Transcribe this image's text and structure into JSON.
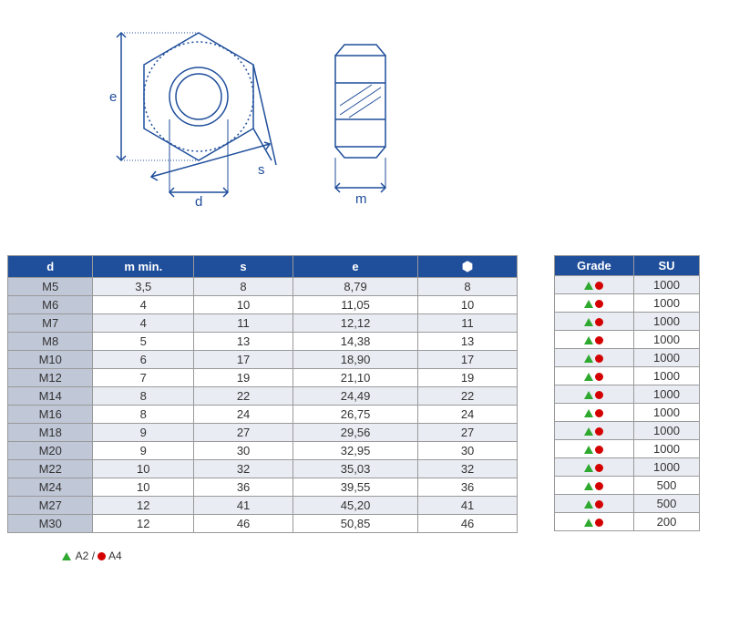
{
  "diagram": {
    "labels": {
      "e": "e",
      "s": "s",
      "d": "d",
      "m": "m"
    },
    "stroke": "#1f4e9b",
    "stroke_width": 1.5
  },
  "main_table": {
    "columns": [
      "d",
      "m min.",
      "s",
      "e",
      "⬢"
    ],
    "rows": [
      [
        "M5",
        "3,5",
        "8",
        "8,79",
        "8"
      ],
      [
        "M6",
        "4",
        "10",
        "11,05",
        "10"
      ],
      [
        "M7",
        "4",
        "11",
        "12,12",
        "11"
      ],
      [
        "M8",
        "5",
        "13",
        "14,38",
        "13"
      ],
      [
        "M10",
        "6",
        "17",
        "18,90",
        "17"
      ],
      [
        "M12",
        "7",
        "19",
        "21,10",
        "19"
      ],
      [
        "M14",
        "8",
        "22",
        "24,49",
        "22"
      ],
      [
        "M16",
        "8",
        "24",
        "26,75",
        "24"
      ],
      [
        "M18",
        "9",
        "27",
        "29,56",
        "27"
      ],
      [
        "M20",
        "9",
        "30",
        "32,95",
        "30"
      ],
      [
        "M22",
        "10",
        "32",
        "35,03",
        "32"
      ],
      [
        "M24",
        "10",
        "36",
        "39,55",
        "36"
      ],
      [
        "M27",
        "12",
        "41",
        "45,20",
        "41"
      ],
      [
        "M30",
        "12",
        "46",
        "50,85",
        "46"
      ]
    ],
    "col_widths": [
      "90px",
      "110px",
      "110px",
      "140px",
      "110px"
    ]
  },
  "side_table": {
    "columns": [
      "Grade",
      "SU"
    ],
    "su": [
      "1000",
      "1000",
      "1000",
      "1000",
      "1000",
      "1000",
      "1000",
      "1000",
      "1000",
      "1000",
      "1000",
      "500",
      "500",
      "200"
    ]
  },
  "legend": {
    "a2": "A2",
    "a4": "A4",
    "sep": " / "
  },
  "colors": {
    "header_bg": "#1f4e9b",
    "first_col_bg": "#c0c7d6",
    "row_alt_bg": "#e9edf3",
    "border": "#999999",
    "green": "#2ea82e",
    "red": "#d40000"
  }
}
